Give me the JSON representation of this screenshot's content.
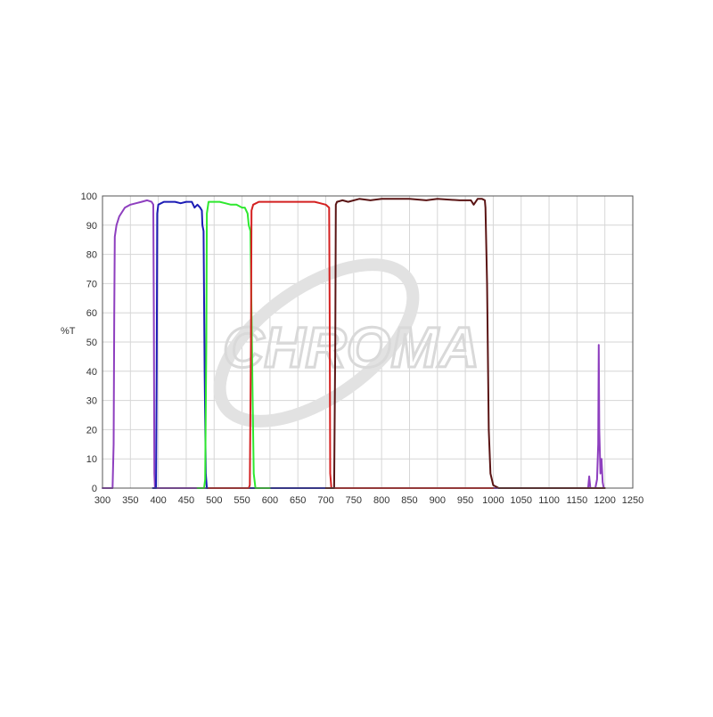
{
  "chart_data": {
    "type": "line",
    "title": "",
    "xlabel": "",
    "ylabel": "%T",
    "xlim": [
      300,
      1250
    ],
    "ylim": [
      0,
      100
    ],
    "x_ticks": [
      "300",
      "350",
      "400",
      "450",
      "500",
      "550",
      "600",
      "650",
      "700",
      "750",
      "800",
      "850",
      "900",
      "950",
      "1000",
      "1050",
      "1100",
      "1150",
      "1200",
      "1250"
    ],
    "y_ticks": [
      "0",
      "10",
      "20",
      "30",
      "40",
      "50",
      "60",
      "70",
      "80",
      "90",
      "100"
    ],
    "grid": true,
    "watermark": "CHROMA",
    "series": [
      {
        "color": "#8e3fbf",
        "points": [
          [
            300,
            0
          ],
          [
            318,
            0
          ],
          [
            320,
            15
          ],
          [
            321,
            60
          ],
          [
            322,
            86
          ],
          [
            325,
            90
          ],
          [
            330,
            93
          ],
          [
            340,
            96
          ],
          [
            350,
            97
          ],
          [
            360,
            97.5
          ],
          [
            370,
            98
          ],
          [
            380,
            98.5
          ],
          [
            388,
            98
          ],
          [
            391,
            97
          ],
          [
            392,
            60
          ],
          [
            393,
            5
          ],
          [
            394,
            0
          ],
          [
            1170,
            0
          ],
          [
            1172,
            4
          ],
          [
            1174,
            0
          ],
          [
            1183,
            0
          ],
          [
            1186,
            3
          ],
          [
            1188,
            15
          ],
          [
            1189,
            49
          ],
          [
            1190,
            20
          ],
          [
            1192,
            5
          ],
          [
            1194,
            10
          ],
          [
            1196,
            2
          ],
          [
            1198,
            0
          ],
          [
            1200,
            0
          ]
        ]
      },
      {
        "color": "#1c1cb5",
        "points": [
          [
            390,
            0
          ],
          [
            396,
            0
          ],
          [
            397,
            40
          ],
          [
            398,
            94
          ],
          [
            400,
            97
          ],
          [
            410,
            98
          ],
          [
            420,
            98
          ],
          [
            430,
            98
          ],
          [
            440,
            97.5
          ],
          [
            450,
            98
          ],
          [
            460,
            98
          ],
          [
            465,
            96
          ],
          [
            470,
            97
          ],
          [
            475,
            96
          ],
          [
            478,
            95
          ],
          [
            479,
            90
          ],
          [
            481,
            88
          ],
          [
            483,
            40
          ],
          [
            485,
            5
          ],
          [
            487,
            0
          ],
          [
            720,
            0
          ]
        ]
      },
      {
        "color": "#2ee82e",
        "points": [
          [
            470,
            0
          ],
          [
            482,
            0
          ],
          [
            484,
            3
          ],
          [
            486,
            50
          ],
          [
            487,
            94
          ],
          [
            490,
            98
          ],
          [
            500,
            98
          ],
          [
            510,
            98
          ],
          [
            520,
            97.5
          ],
          [
            530,
            97
          ],
          [
            540,
            97
          ],
          [
            550,
            96
          ],
          [
            555,
            96
          ],
          [
            560,
            94
          ],
          [
            562,
            90
          ],
          [
            565,
            88
          ],
          [
            567,
            60
          ],
          [
            569,
            30
          ],
          [
            571,
            5
          ],
          [
            574,
            0
          ],
          [
            600,
            0
          ]
        ]
      },
      {
        "color": "#d42020",
        "points": [
          [
            490,
            0
          ],
          [
            562,
            0
          ],
          [
            564,
            1
          ],
          [
            566,
            50
          ],
          [
            567,
            95
          ],
          [
            570,
            97
          ],
          [
            580,
            98
          ],
          [
            600,
            98
          ],
          [
            620,
            98
          ],
          [
            640,
            98
          ],
          [
            660,
            98
          ],
          [
            680,
            98
          ],
          [
            690,
            97.5
          ],
          [
            700,
            97
          ],
          [
            706,
            96
          ],
          [
            707,
            60
          ],
          [
            708,
            5
          ],
          [
            710,
            0
          ],
          [
            1000,
            0
          ]
        ]
      },
      {
        "color": "#5a1414",
        "points": [
          [
            700,
            0
          ],
          [
            715,
            0
          ],
          [
            717,
            50
          ],
          [
            718,
            97
          ],
          [
            720,
            98
          ],
          [
            730,
            98.5
          ],
          [
            740,
            98
          ],
          [
            760,
            99
          ],
          [
            780,
            98.5
          ],
          [
            800,
            99
          ],
          [
            830,
            99
          ],
          [
            850,
            99
          ],
          [
            880,
            98.5
          ],
          [
            900,
            99
          ],
          [
            940,
            98.5
          ],
          [
            960,
            98.5
          ],
          [
            965,
            97
          ],
          [
            972,
            99
          ],
          [
            980,
            99
          ],
          [
            985,
            98.5
          ],
          [
            986,
            96
          ],
          [
            989,
            70
          ],
          [
            992,
            20
          ],
          [
            995,
            5
          ],
          [
            1000,
            1
          ],
          [
            1010,
            0
          ],
          [
            1200,
            0
          ]
        ]
      }
    ]
  }
}
